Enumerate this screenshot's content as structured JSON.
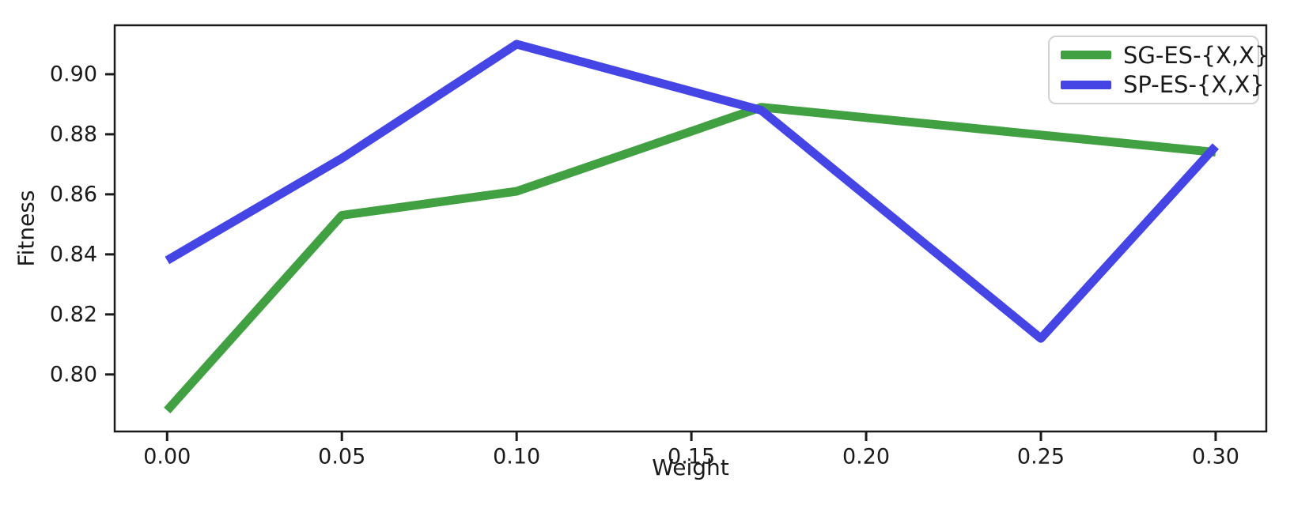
{
  "figure": {
    "background": "#ffffff",
    "axis_color": "#1a1a1a",
    "text_color": "#1a1a1a"
  },
  "chart_data": {
    "type": "line",
    "title": "",
    "xlabel": "Weight",
    "ylabel": "Fitness",
    "xlim": [
      -0.015,
      0.3145
    ],
    "ylim": [
      0.781,
      0.9163
    ],
    "x_ticks": [
      0.0,
      0.05,
      0.1,
      0.15,
      0.2,
      0.25,
      0.3
    ],
    "x_tick_labels": [
      "0.00",
      "0.05",
      "0.10",
      "0.15",
      "0.20",
      "0.25",
      "0.30"
    ],
    "y_ticks": [
      0.8,
      0.82,
      0.84,
      0.86,
      0.88,
      0.9
    ],
    "y_tick_labels": [
      "0.80",
      "0.82",
      "0.84",
      "0.86",
      "0.88",
      "0.90"
    ],
    "grid": false,
    "legend_position": "upper right",
    "line_width": 11,
    "series": [
      {
        "name": "SG-ES-{X,X}",
        "color": "#41a041",
        "x": [
          0.0,
          0.05,
          0.1,
          0.17,
          0.3
        ],
        "y": [
          0.788,
          0.853,
          0.861,
          0.889,
          0.874
        ]
      },
      {
        "name": "SP-ES-{X,X}",
        "color": "#4545e6",
        "x": [
          0.0,
          0.05,
          0.1,
          0.17,
          0.25,
          0.3
        ],
        "y": [
          0.838,
          0.872,
          0.91,
          0.888,
          0.812,
          0.876
        ]
      }
    ]
  }
}
